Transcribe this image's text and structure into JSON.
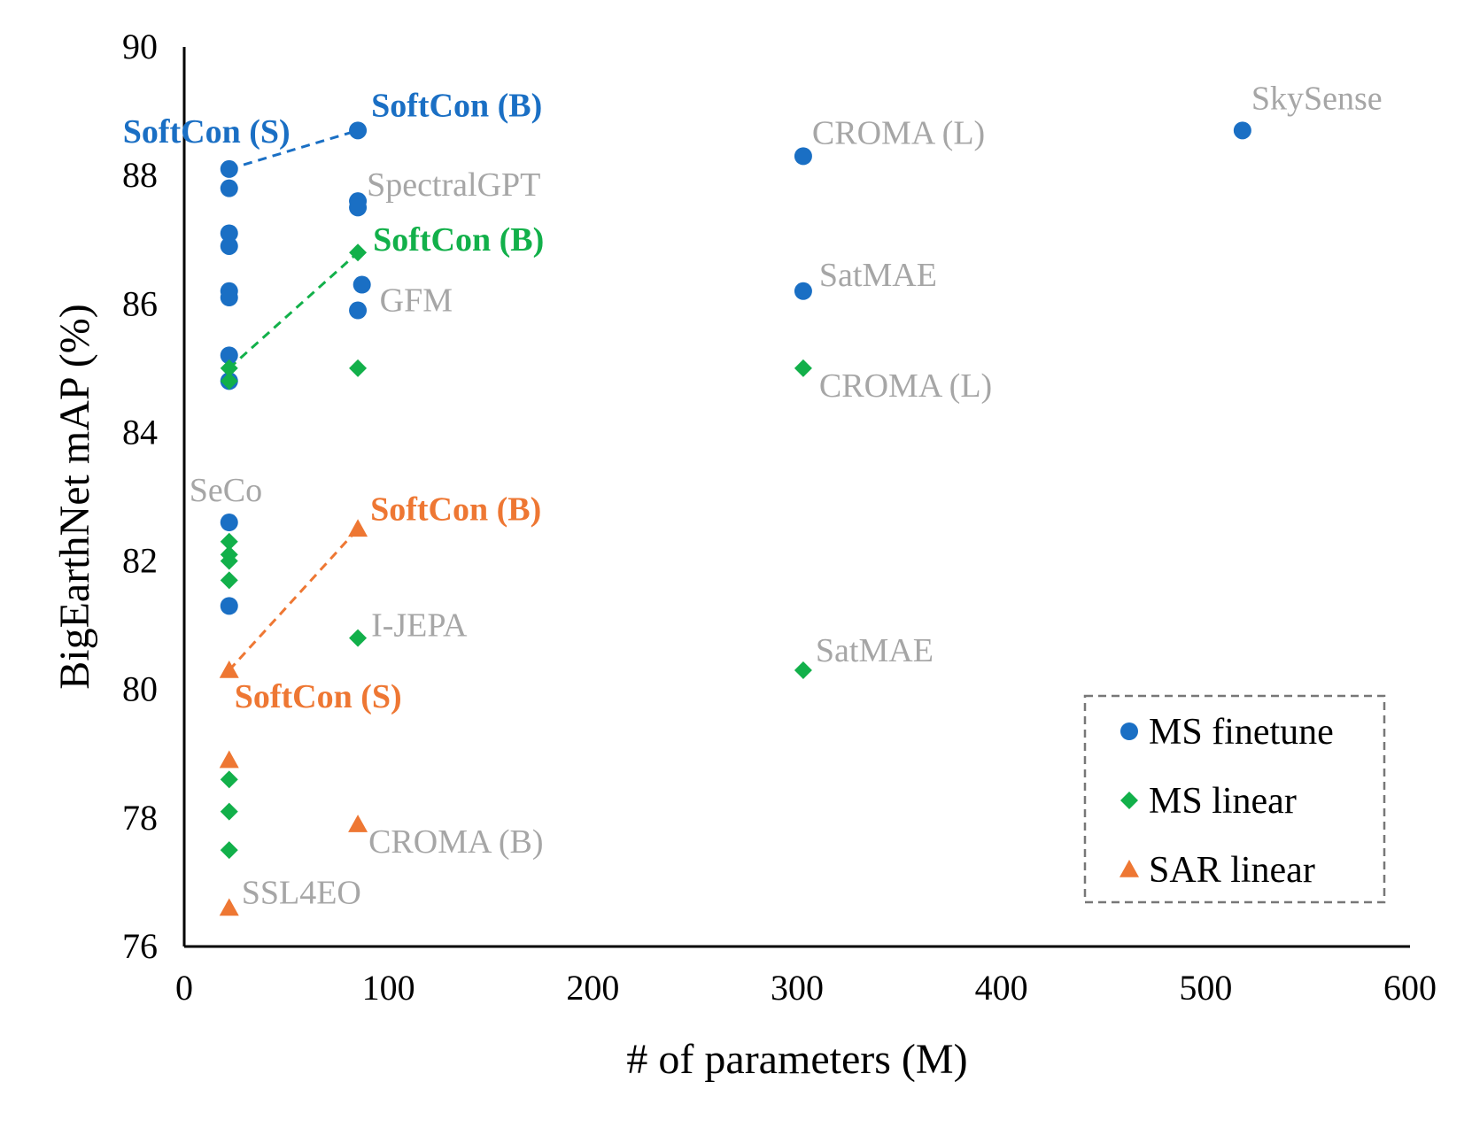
{
  "chart_data": {
    "type": "scatter",
    "title": "",
    "xlabel": "# of parameters (M)",
    "ylabel": "BigEarthNet mAP (%)",
    "xlim": [
      0,
      600
    ],
    "ylim": [
      76,
      90
    ],
    "xticks": [
      0,
      100,
      200,
      300,
      400,
      500,
      600
    ],
    "yticks": [
      76,
      78,
      80,
      82,
      84,
      86,
      88,
      90
    ],
    "grid": false,
    "legend_position": "bottom-right",
    "colors": {
      "ms_finetune": "#1a6fc4",
      "ms_linear": "#12b04a",
      "sar_linear": "#ee7733",
      "annotation": "#a6a6a6"
    },
    "series": [
      {
        "name": "MS finetune",
        "marker": "circle",
        "color": "#1a6fc4",
        "points": [
          {
            "x": 22,
            "y": 88.1
          },
          {
            "x": 22,
            "y": 87.8
          },
          {
            "x": 22,
            "y": 87.1
          },
          {
            "x": 22,
            "y": 86.9
          },
          {
            "x": 22,
            "y": 86.2
          },
          {
            "x": 22,
            "y": 86.1
          },
          {
            "x": 22,
            "y": 85.2
          },
          {
            "x": 22,
            "y": 84.8
          },
          {
            "x": 22,
            "y": 82.6
          },
          {
            "x": 22,
            "y": 81.3
          },
          {
            "x": 85,
            "y": 88.7
          },
          {
            "x": 85,
            "y": 87.6
          },
          {
            "x": 85,
            "y": 87.5
          },
          {
            "x": 87,
            "y": 86.3
          },
          {
            "x": 85,
            "y": 85.9
          },
          {
            "x": 303,
            "y": 88.3
          },
          {
            "x": 303,
            "y": 86.2
          },
          {
            "x": 518,
            "y": 88.7
          }
        ]
      },
      {
        "name": "MS linear",
        "marker": "diamond",
        "color": "#12b04a",
        "points": [
          {
            "x": 22,
            "y": 85.0
          },
          {
            "x": 22,
            "y": 84.8
          },
          {
            "x": 22,
            "y": 82.3
          },
          {
            "x": 22,
            "y": 82.1
          },
          {
            "x": 22,
            "y": 82.0
          },
          {
            "x": 22,
            "y": 81.7
          },
          {
            "x": 22,
            "y": 78.6
          },
          {
            "x": 22,
            "y": 78.1
          },
          {
            "x": 22,
            "y": 77.5
          },
          {
            "x": 85,
            "y": 86.8
          },
          {
            "x": 85,
            "y": 85.0
          },
          {
            "x": 85,
            "y": 80.8
          },
          {
            "x": 303,
            "y": 85.0
          },
          {
            "x": 303,
            "y": 80.3
          }
        ]
      },
      {
        "name": "SAR linear",
        "marker": "triangle",
        "color": "#ee7733",
        "points": [
          {
            "x": 22,
            "y": 80.3
          },
          {
            "x": 22,
            "y": 78.9
          },
          {
            "x": 22,
            "y": 76.6
          },
          {
            "x": 85,
            "y": 82.5
          },
          {
            "x": 85,
            "y": 77.9
          }
        ]
      }
    ],
    "lines": [
      {
        "color": "#1a6fc4",
        "from": [
          22,
          88.1
        ],
        "to": [
          85,
          88.7
        ]
      },
      {
        "color": "#12b04a",
        "from": [
          22,
          85.0
        ],
        "to": [
          85,
          86.8
        ]
      },
      {
        "color": "#ee7733",
        "from": [
          22,
          80.3
        ],
        "to": [
          85,
          82.5
        ]
      }
    ],
    "annotations": [
      {
        "text": "SoftCon (S)",
        "x": 22,
        "y": 88.1,
        "color": "#1a6fc4",
        "bold": true,
        "dx": -120,
        "dy": -30
      },
      {
        "text": "SoftCon (B)",
        "x": 85,
        "y": 88.7,
        "color": "#1a6fc4",
        "bold": true,
        "dx": 15,
        "dy": -16
      },
      {
        "text": "SpectralGPT",
        "x": 85,
        "y": 87.6,
        "color": "#a6a6a6",
        "bold": false,
        "dx": 10,
        "dy": -6
      },
      {
        "text": "SoftCon (B)",
        "x": 85,
        "y": 86.8,
        "color": "#12b04a",
        "bold": true,
        "dx": 17,
        "dy": -2
      },
      {
        "text": "GFM",
        "x": 87,
        "y": 86.3,
        "color": "#a6a6a6",
        "bold": false,
        "dx": 20,
        "dy": 30
      },
      {
        "text": "SeCo",
        "x": 22,
        "y": 82.6,
        "color": "#a6a6a6",
        "bold": false,
        "dx": -45,
        "dy": -24
      },
      {
        "text": "SoftCon (B)",
        "x": 85,
        "y": 82.5,
        "color": "#ee7733",
        "bold": true,
        "dx": 14,
        "dy": -10
      },
      {
        "text": "I-JEPA",
        "x": 85,
        "y": 80.8,
        "color": "#a6a6a6",
        "bold": false,
        "dx": 15,
        "dy": -2
      },
      {
        "text": "SoftCon (S)",
        "x": 22,
        "y": 80.3,
        "color": "#ee7733",
        "bold": true,
        "dx": 6,
        "dy": 42
      },
      {
        "text": "CROMA (B)",
        "x": 85,
        "y": 77.9,
        "color": "#a6a6a6",
        "bold": false,
        "dx": 12,
        "dy": 32
      },
      {
        "text": "SSL4EO",
        "x": 22,
        "y": 76.6,
        "color": "#a6a6a6",
        "bold": false,
        "dx": 14,
        "dy": -5
      },
      {
        "text": "CROMA (L)",
        "x": 303,
        "y": 88.3,
        "color": "#a6a6a6",
        "bold": false,
        "dx": 10,
        "dy": -14
      },
      {
        "text": "SatMAE",
        "x": 303,
        "y": 86.2,
        "color": "#a6a6a6",
        "bold": false,
        "dx": 18,
        "dy": -6
      },
      {
        "text": "CROMA (L)",
        "x": 303,
        "y": 85.0,
        "color": "#a6a6a6",
        "bold": false,
        "dx": 18,
        "dy": 32
      },
      {
        "text": "SatMAE",
        "x": 303,
        "y": 80.3,
        "color": "#a6a6a6",
        "bold": false,
        "dx": 14,
        "dy": -10
      },
      {
        "text": "SkySense",
        "x": 518,
        "y": 88.7,
        "color": "#a6a6a6",
        "bold": false,
        "dx": 10,
        "dy": -24
      }
    ]
  }
}
